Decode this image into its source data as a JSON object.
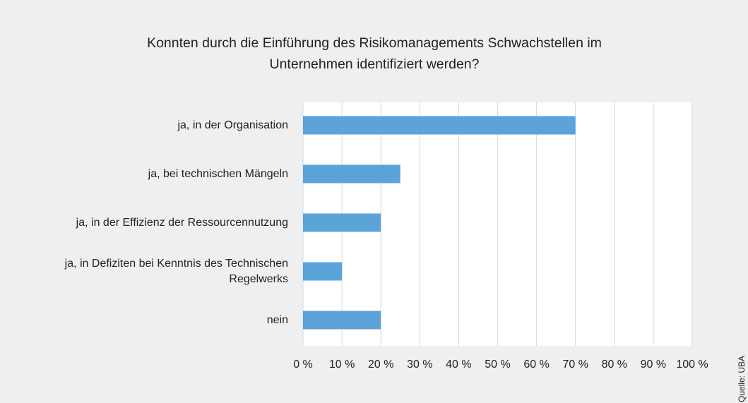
{
  "chart_data": {
    "type": "barh",
    "title": "Konnten durch die Einführung des Risikomanagements Schwachstellen im Unternehmen identifiziert werden?",
    "categories": [
      "ja, in der Organisation",
      "ja, bei technischen Mängeln",
      "ja, in der Effizienz der Ressourcennutzung",
      "ja, in Defiziten bei Kenntnis des Technischen Regelwerks",
      "nein"
    ],
    "values": [
      70,
      25,
      20,
      10,
      20
    ],
    "color": "#5ba3d9",
    "xlim": [
      0,
      100
    ],
    "xticks": [
      {
        "value": 0,
        "label": "0 %"
      },
      {
        "value": 10,
        "label": "10 %"
      },
      {
        "value": 20,
        "label": "20 %"
      },
      {
        "value": 30,
        "label": "30 %"
      },
      {
        "value": 40,
        "label": "40 %"
      },
      {
        "value": 50,
        "label": "50 %"
      },
      {
        "value": 60,
        "label": "60 %"
      },
      {
        "value": 70,
        "label": "70 %"
      },
      {
        "value": 80,
        "label": "80 %"
      },
      {
        "value": 90,
        "label": "90 %"
      },
      {
        "value": 100,
        "label": "100 %"
      }
    ],
    "grid": true,
    "source": "Quelle: UBA"
  }
}
